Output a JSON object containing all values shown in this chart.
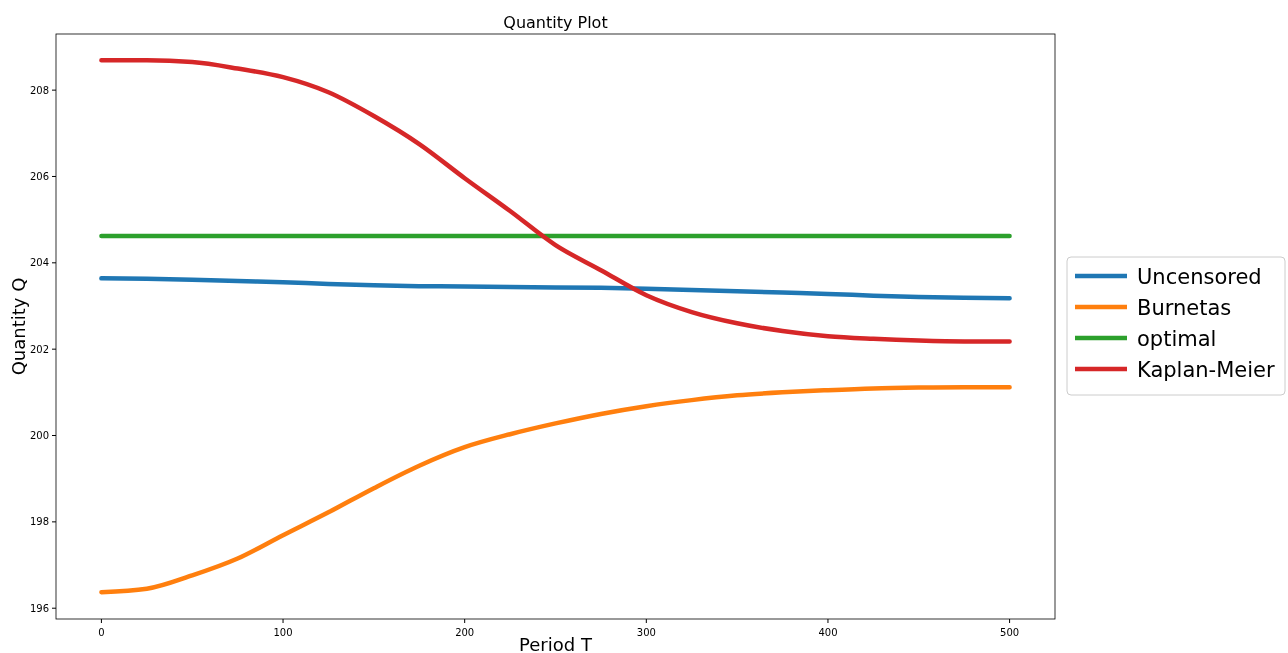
{
  "chart_data": {
    "type": "line",
    "title": "Quantity Plot",
    "xlabel": "Period T",
    "ylabel": "Quantity Q",
    "x": [
      0,
      25,
      50,
      75,
      100,
      125,
      150,
      175,
      200,
      225,
      250,
      275,
      300,
      325,
      350,
      375,
      400,
      425,
      450,
      475,
      500
    ],
    "xlim": [
      -25,
      525
    ],
    "xticks": [
      0,
      100,
      200,
      300,
      400,
      500
    ],
    "ylim": [
      195.75,
      209.3
    ],
    "yticks": [
      196,
      198,
      200,
      202,
      204,
      206,
      208
    ],
    "legend": "right",
    "grid": false,
    "marker": "none",
    "line_style": "solid",
    "series": [
      {
        "name": "Uncensored",
        "color": "#1f77b4",
        "values": [
          203.64,
          203.63,
          203.61,
          203.58,
          203.55,
          203.51,
          203.48,
          203.46,
          203.45,
          203.44,
          203.43,
          203.42,
          203.4,
          203.37,
          203.34,
          203.31,
          203.28,
          203.24,
          203.21,
          203.19,
          203.18
        ]
      },
      {
        "name": "Burnetas",
        "color": "#ff7f0e",
        "values": [
          196.37,
          196.45,
          196.76,
          197.15,
          197.69,
          198.22,
          198.78,
          199.3,
          199.73,
          200.03,
          200.28,
          200.5,
          200.68,
          200.82,
          200.93,
          201.0,
          201.05,
          201.09,
          201.11,
          201.12,
          201.12
        ]
      },
      {
        "name": "optimal",
        "color": "#2ca02c",
        "values": [
          204.62,
          204.62,
          204.62,
          204.62,
          204.62,
          204.62,
          204.62,
          204.62,
          204.62,
          204.62,
          204.62,
          204.62,
          204.62,
          204.62,
          204.62,
          204.62,
          204.62,
          204.62,
          204.62,
          204.62,
          204.62
        ]
      },
      {
        "name": "Kaplan-Meier",
        "color": "#d62728",
        "values": [
          208.69,
          208.69,
          208.65,
          208.5,
          208.3,
          207.95,
          207.4,
          206.75,
          205.96,
          205.2,
          204.41,
          203.83,
          203.25,
          202.86,
          202.6,
          202.42,
          202.3,
          202.24,
          202.2,
          202.18,
          202.18
        ]
      }
    ]
  }
}
